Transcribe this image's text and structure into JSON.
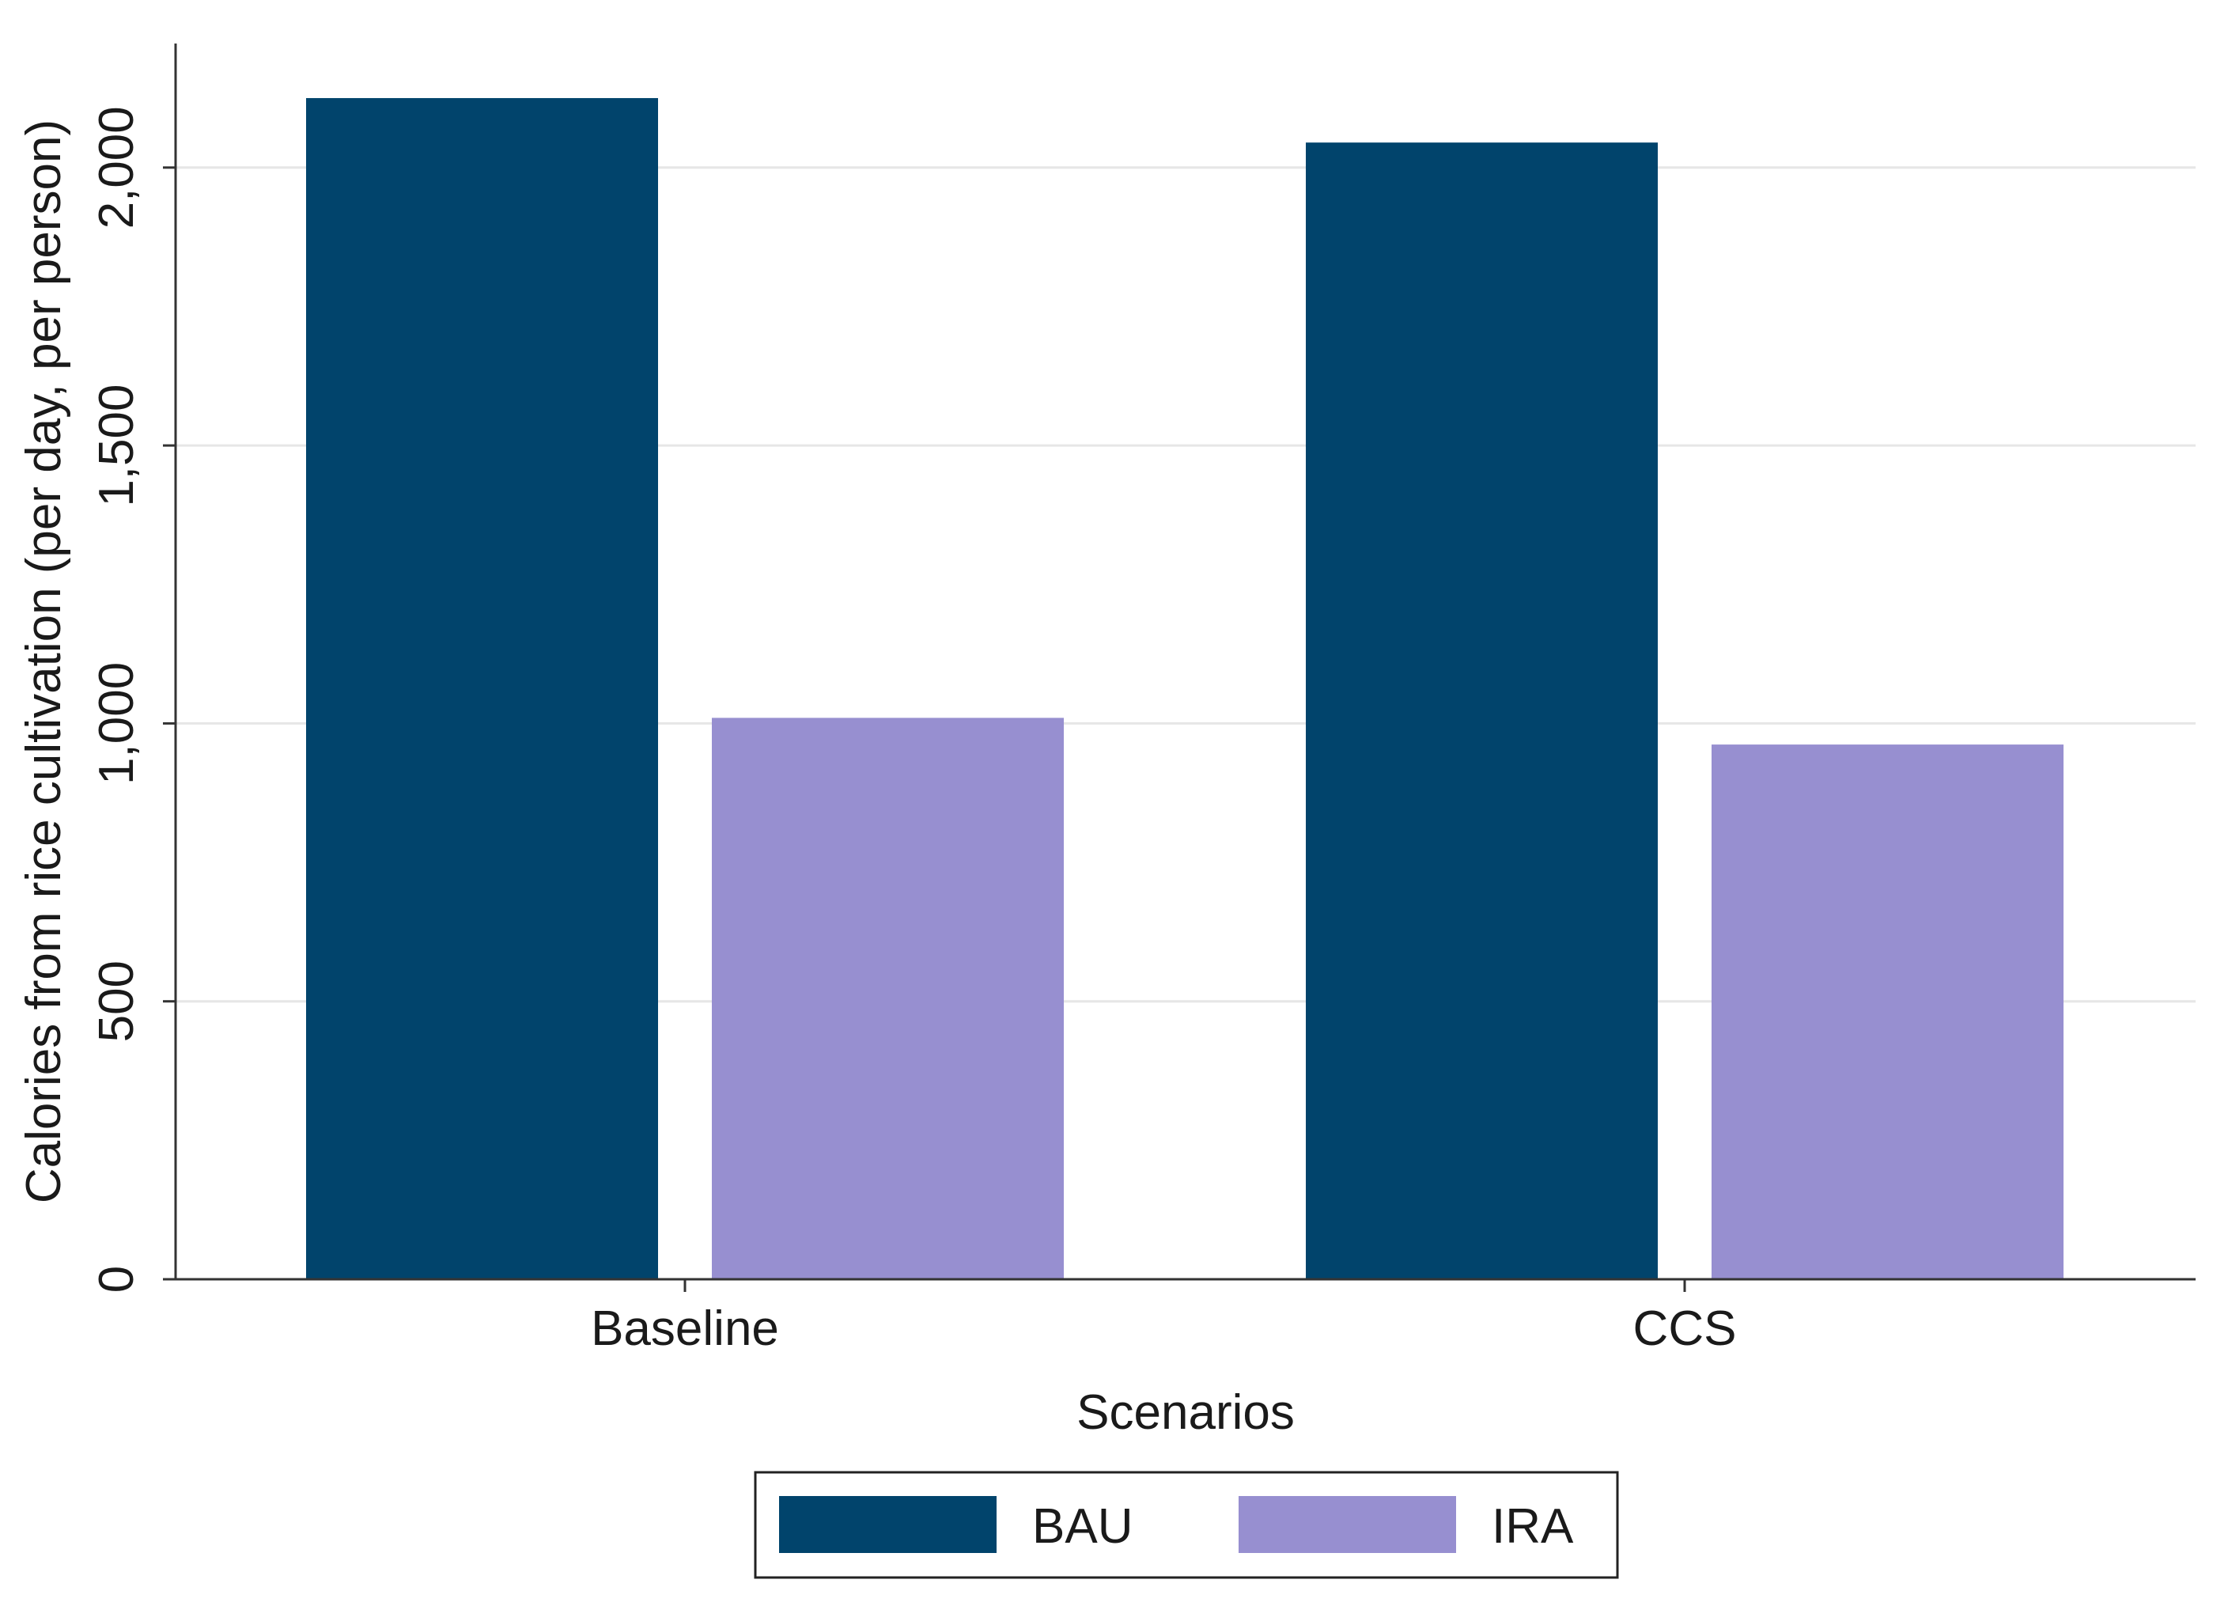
{
  "chart_data": {
    "type": "bar",
    "title": "",
    "xlabel": "Scenarios",
    "ylabel": "Calories from rice cultivation (per day, per person)",
    "categories": [
      "Baseline",
      "CCS"
    ],
    "series": [
      {
        "name": "BAU",
        "color": "#01446c",
        "values": [
          2125,
          2045
        ]
      },
      {
        "name": "IRA",
        "color": "#978fd0",
        "values": [
          1010,
          962
        ]
      }
    ],
    "ylim": [
      0,
      2225
    ],
    "yticks": [
      0,
      500,
      1000,
      1500,
      2000
    ],
    "ytick_labels": [
      "0",
      "500",
      "1,000",
      "1,500",
      "2,000"
    ],
    "grid": true,
    "legend_position": "bottom-center"
  }
}
